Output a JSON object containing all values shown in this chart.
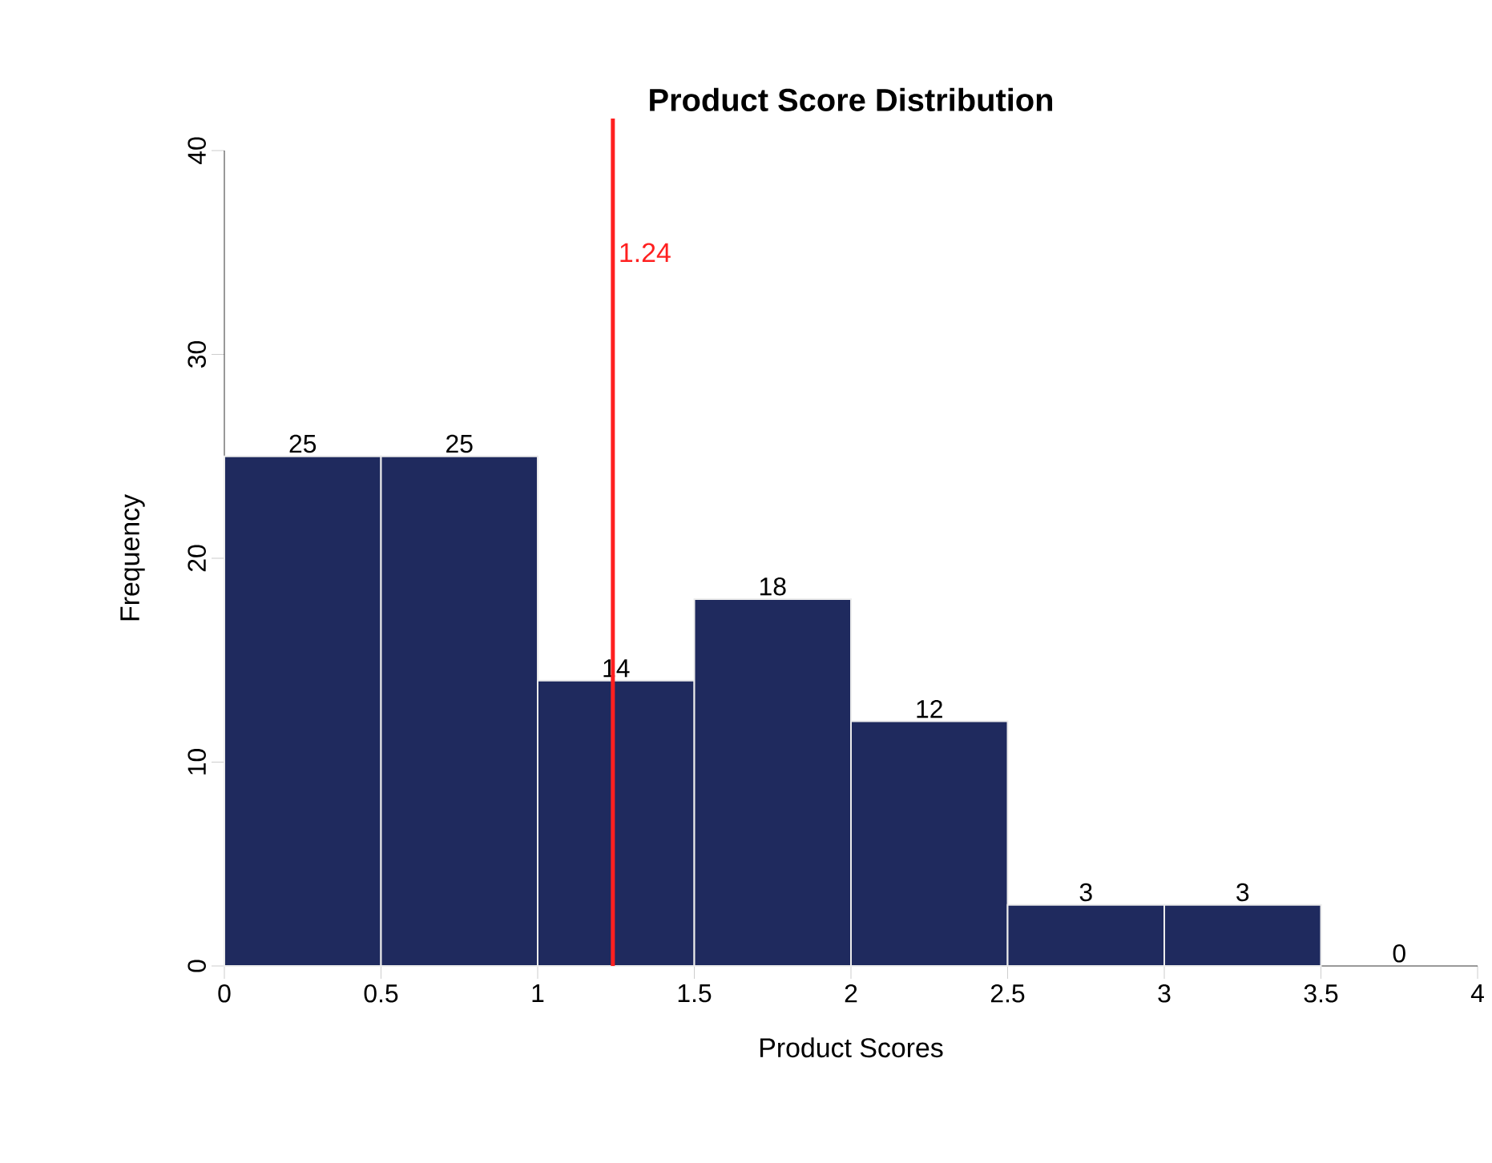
{
  "chart_data": {
    "type": "histogram",
    "title": "Product Score Distribution",
    "xlabel": "Product Scores",
    "ylabel": "Frequency",
    "bins": [
      0,
      0.5,
      1,
      1.5,
      2,
      2.5,
      3,
      3.5,
      4
    ],
    "values": [
      25,
      25,
      14,
      18,
      12,
      3,
      3,
      0
    ],
    "color": "#1f2a5e",
    "xlim": [
      0,
      4
    ],
    "xticks": [
      0,
      0.5,
      1,
      1.5,
      2,
      2.5,
      3,
      3.5,
      4
    ],
    "ylim": [
      0,
      40
    ],
    "yticks": [
      0,
      10,
      20,
      30,
      40
    ],
    "data_labels": true,
    "grid": false,
    "ref_lines": [
      {
        "axis": "x",
        "value": 1.24,
        "label": "1.24",
        "color": "#ff2020"
      }
    ]
  }
}
